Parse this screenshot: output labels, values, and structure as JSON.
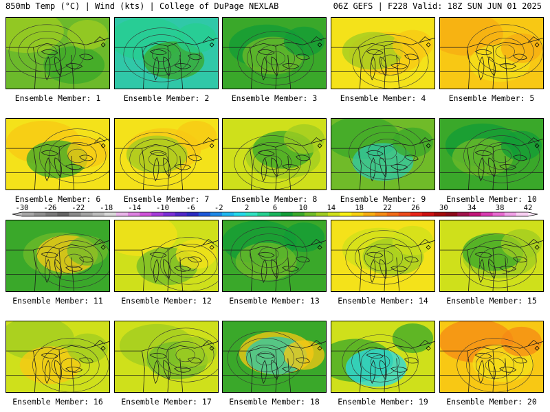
{
  "header": {
    "left": "850mb Temp (°C) | Wind (kts) | College of DuPage NEXLAB",
    "right": "06Z GEFS | F228 Valid: 18Z SUN JUN 01 2025"
  },
  "colorbar": {
    "labels": [
      "-30",
      "-26",
      "-22",
      "-18",
      "-14",
      "-10",
      "-6",
      "-2",
      "2",
      "6",
      "10",
      "14",
      "18",
      "22",
      "26",
      "30",
      "34",
      "38",
      "42"
    ],
    "colors": [
      "#a7a7a7",
      "#8f8f8f",
      "#797979",
      "#636363",
      "#8a8a8a",
      "#a4a4a4",
      "#bcbcbc",
      "#d8d8d8",
      "#e8b4e8",
      "#dd82e0",
      "#cf52d8",
      "#a53bd9",
      "#7a2fd6",
      "#4f27c7",
      "#2a2ac0",
      "#1c58d8",
      "#1e88e6",
      "#1fb6ef",
      "#25d8e8",
      "#30e0c0",
      "#25cf8f",
      "#18b35b",
      "#129c37",
      "#3aa82a",
      "#70bb29",
      "#9fcc22",
      "#cfe01b",
      "#f7ef15",
      "#f8d012",
      "#f7ac12",
      "#f58a14",
      "#f06a16",
      "#ec4a1a",
      "#e82418",
      "#cc1010",
      "#a20a0a",
      "#8c0818",
      "#a0124a",
      "#c21478",
      "#d83ab0",
      "#e86ad0",
      "#f0a0e6",
      "#f8cff2"
    ],
    "label_min": -30,
    "label_step": 4
  },
  "panels": [
    {
      "caption": "Ensemble Member: 1",
      "palette": [
        "#6cba2b",
        "#9fcc22",
        "#3aa82a"
      ]
    },
    {
      "caption": "Ensemble Member: 2",
      "palette": [
        "#30c8a8",
        "#25cf8f",
        "#3aa82a"
      ]
    },
    {
      "caption": "Ensemble Member: 3",
      "palette": [
        "#3aa82a",
        "#129c37",
        "#70bb29"
      ]
    },
    {
      "caption": "Ensemble Member: 4",
      "palette": [
        "#f4e21a",
        "#f8c814",
        "#9fcc22"
      ]
    },
    {
      "caption": "Ensemble Member: 5",
      "palette": [
        "#f8c814",
        "#f7ac12",
        "#f4e21a"
      ]
    },
    {
      "caption": "Ensemble Member: 6",
      "palette": [
        "#f4e21a",
        "#f8c814",
        "#3aa82a"
      ]
    },
    {
      "caption": "Ensemble Member: 7",
      "palette": [
        "#f4e21a",
        "#f8c814",
        "#9fcc22"
      ]
    },
    {
      "caption": "Ensemble Member: 8",
      "palette": [
        "#cfe01b",
        "#9fcc22",
        "#3aa82a"
      ]
    },
    {
      "caption": "Ensemble Member: 9",
      "palette": [
        "#70bb29",
        "#3aa82a",
        "#30c8a8"
      ]
    },
    {
      "caption": "Ensemble Member: 10",
      "palette": [
        "#3aa82a",
        "#129c37",
        "#70bb29"
      ]
    },
    {
      "caption": "Ensemble Member: 11",
      "palette": [
        "#3aa82a",
        "#70bb29",
        "#f8c814"
      ]
    },
    {
      "caption": "Ensemble Member: 12",
      "palette": [
        "#cfe01b",
        "#f4e21a",
        "#70bb29"
      ]
    },
    {
      "caption": "Ensemble Member: 13",
      "palette": [
        "#3aa82a",
        "#129c37",
        "#70bb29"
      ]
    },
    {
      "caption": "Ensemble Member: 14",
      "palette": [
        "#f4e21a",
        "#cfe01b",
        "#9fcc22"
      ]
    },
    {
      "caption": "Ensemble Member: 15",
      "palette": [
        "#cfe01b",
        "#9fcc22",
        "#3aa82a"
      ]
    },
    {
      "caption": "Ensemble Member: 16",
      "palette": [
        "#cfe01b",
        "#9fcc22",
        "#f8c814"
      ]
    },
    {
      "caption": "Ensemble Member: 17",
      "palette": [
        "#cfe01b",
        "#9fcc22",
        "#70bb29"
      ]
    },
    {
      "caption": "Ensemble Member: 18",
      "palette": [
        "#3aa82a",
        "#f8c814",
        "#30c8a8"
      ]
    },
    {
      "caption": "Ensemble Member: 19",
      "palette": [
        "#cfe01b",
        "#3aa82a",
        "#25d8e8"
      ]
    },
    {
      "caption": "Ensemble Member: 20",
      "palette": [
        "#f8c814",
        "#f58a14",
        "#f4e21a"
      ]
    }
  ]
}
